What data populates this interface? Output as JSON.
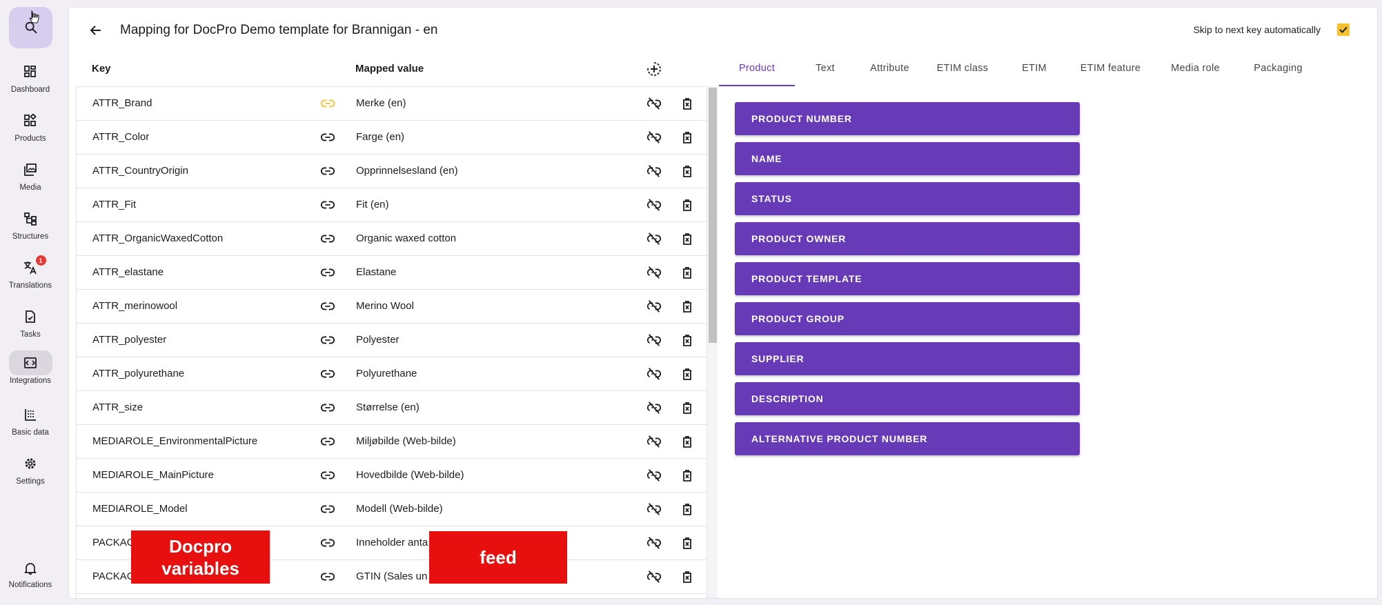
{
  "sidebar": {
    "items": [
      {
        "label": "Dashboard",
        "icon": "dashboard-icon"
      },
      {
        "label": "Products",
        "icon": "products-icon"
      },
      {
        "label": "Media",
        "icon": "media-icon"
      },
      {
        "label": "Structures",
        "icon": "structures-icon"
      },
      {
        "label": "Translations",
        "icon": "translate-icon",
        "badge": "1"
      },
      {
        "label": "Tasks",
        "icon": "tasks-icon"
      },
      {
        "label": "Integrations",
        "icon": "integrations-icon"
      },
      {
        "label": "Basic data",
        "icon": "basic-data-icon"
      },
      {
        "label": "Settings",
        "icon": "gear-icon"
      }
    ],
    "notifications_label": "Notifications"
  },
  "header": {
    "title": "Mapping for DocPro Demo template for Brannigan - en",
    "skip_label": "Skip to next key automatically",
    "skip_checked": true
  },
  "table": {
    "col_key": "Key",
    "col_value": "Mapped value",
    "rows": [
      {
        "key": "ATTR_Brand",
        "value": "Merke (en)",
        "link_color": "#f5c12e"
      },
      {
        "key": "ATTR_Color",
        "value": "Farge (en)"
      },
      {
        "key": "ATTR_CountryOrigin",
        "value": "Opprinnelsesland (en)"
      },
      {
        "key": "ATTR_Fit",
        "value": "Fit (en)"
      },
      {
        "key": "ATTR_OrganicWaxedCotton",
        "value": "Organic waxed cotton"
      },
      {
        "key": "ATTR_elastane",
        "value": "Elastane"
      },
      {
        "key": "ATTR_merinowool",
        "value": "Merino Wool"
      },
      {
        "key": "ATTR_polyester",
        "value": "Polyester"
      },
      {
        "key": "ATTR_polyurethane",
        "value": "Polyurethane"
      },
      {
        "key": "ATTR_size",
        "value": "Størrelse (en)"
      },
      {
        "key": "MEDIAROLE_EnvironmentalPicture",
        "value": "Miljøbilde (Web-bilde)"
      },
      {
        "key": "MEDIAROLE_MainPicture",
        "value": "Hovedbilde (Web-bilde)"
      },
      {
        "key": "MEDIAROLE_Model",
        "value": "Modell (Web-bilde)"
      },
      {
        "key": "PACKAG",
        "value": "Inneholder anta"
      },
      {
        "key": "PACKAG",
        "value": "GTIN (Sales un"
      }
    ]
  },
  "overlays": {
    "left": "Docpro variables",
    "right": "feed"
  },
  "tabs": [
    {
      "label": "Product",
      "active": true
    },
    {
      "label": "Text"
    },
    {
      "label": "Attribute"
    },
    {
      "label": "ETIM class"
    },
    {
      "label": "ETIM"
    },
    {
      "label": "ETIM feature"
    },
    {
      "label": "Media role"
    },
    {
      "label": "Packaging"
    }
  ],
  "fields": [
    "PRODUCT NUMBER",
    "NAME",
    "STATUS",
    "PRODUCT OWNER",
    "PRODUCT TEMPLATE",
    "PRODUCT GROUP",
    "SUPPLIER",
    "DESCRIPTION",
    "ALTERNATIVE PRODUCT NUMBER"
  ],
  "colors": {
    "accent": "#673ab7",
    "checkbox": "#f5c12e",
    "overlay": "#e80f0f",
    "badge": "#e53935"
  }
}
